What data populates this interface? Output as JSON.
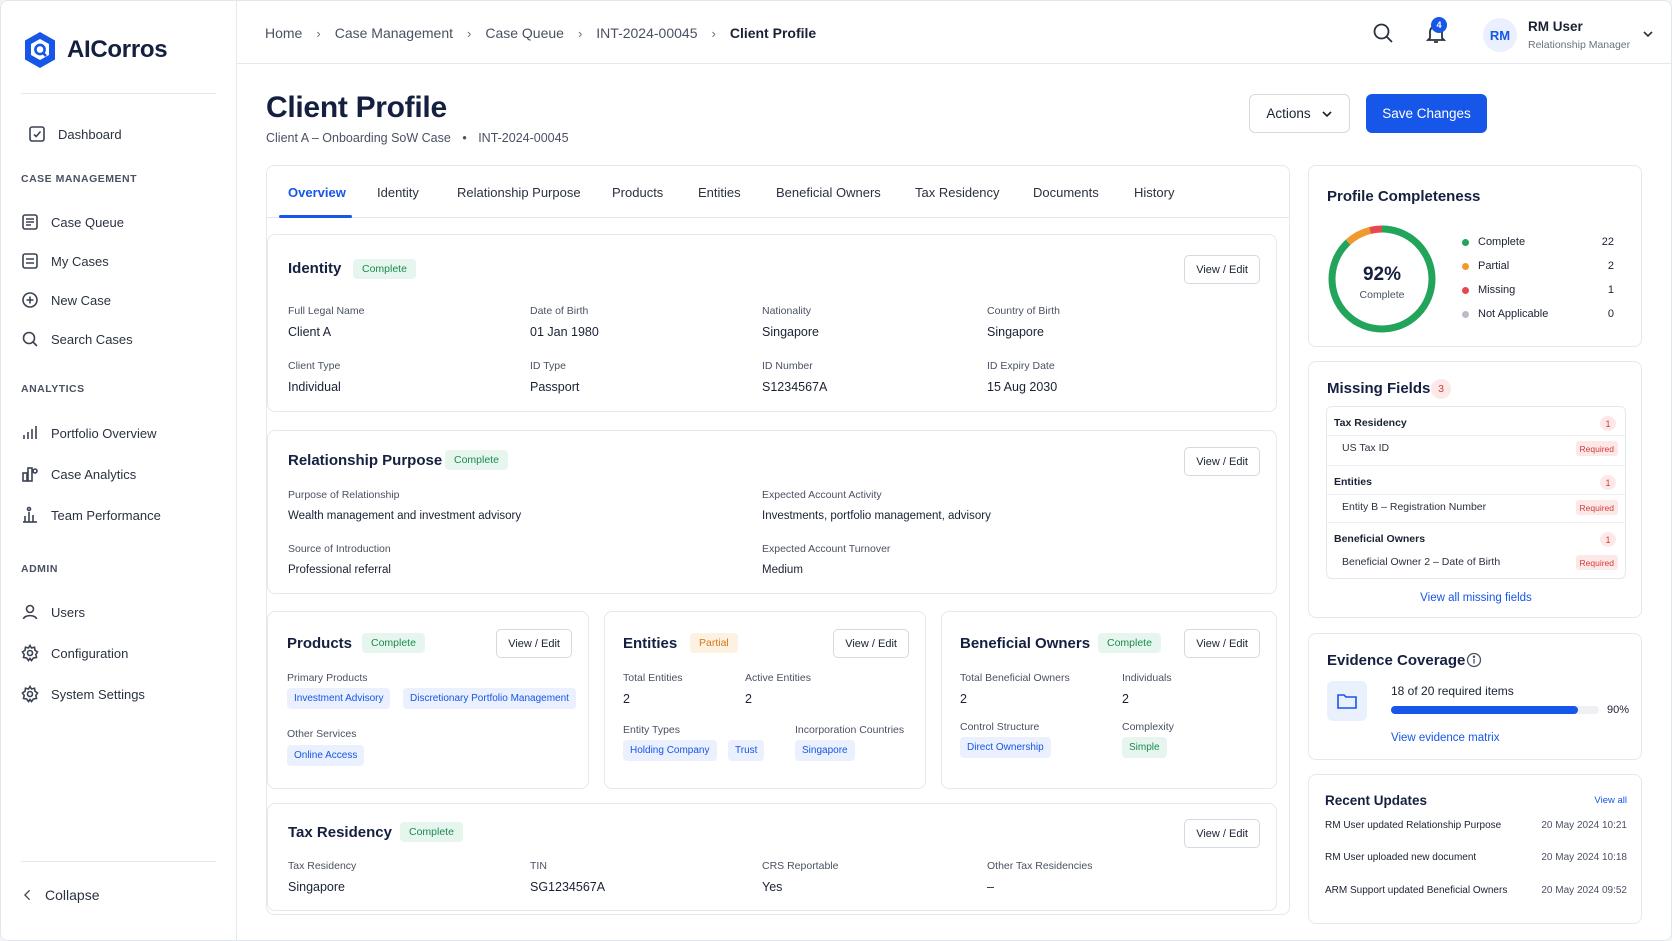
{
  "brand": {
    "name": "AICorros",
    "accent": "#1656e8"
  },
  "sidebar": {
    "dashboard": "Dashboard",
    "section_case": "CASE MANAGEMENT",
    "case_items": [
      "Case Queue",
      "My Cases",
      "New Case",
      "Search Cases"
    ],
    "section_analytics": "ANALYTICS",
    "analytics_items": [
      "Portfolio Overview",
      "Case Analytics",
      "Team Performance"
    ],
    "section_admin": "ADMIN",
    "admin_items": [
      "Users",
      "Configuration",
      "System Settings"
    ],
    "collapse": "Collapse"
  },
  "breadcrumb": [
    "Home",
    "Case Management",
    "Case Queue",
    "INT-2024-00045",
    "Client Profile"
  ],
  "topbar": {
    "notifications": "4",
    "user_initials": "RM",
    "user_name": "RM User",
    "user_role": "Relationship Manager"
  },
  "page": {
    "title": "Client Profile",
    "subtitle": "Client A – Onboarding SoW Case",
    "case_id": "INT-2024-00045",
    "actions_label": "Actions",
    "save_label": "Save Changes"
  },
  "tabs": [
    "Overview",
    "Identity",
    "Relationship Purpose",
    "Products",
    "Entities",
    "Beneficial Owners",
    "Tax Residency",
    "Documents",
    "History"
  ],
  "edit_label": "View / Edit",
  "identity": {
    "title": "Identity",
    "status": "Complete",
    "fields": [
      {
        "label": "Full Legal Name",
        "value": "Client A"
      },
      {
        "label": "Date of Birth",
        "value": "01 Jan 1980"
      },
      {
        "label": "Nationality",
        "value": "Singapore"
      },
      {
        "label": "Country of Birth",
        "value": "Singapore"
      },
      {
        "label": "Client Type",
        "value": "Individual"
      },
      {
        "label": "ID Type",
        "value": "Passport"
      },
      {
        "label": "ID Number",
        "value": "S1234567A"
      },
      {
        "label": "ID Expiry Date",
        "value": "15 Aug 2030"
      }
    ]
  },
  "relationship": {
    "title": "Relationship Purpose",
    "status": "Complete",
    "fields": [
      {
        "label": "Purpose of Relationship",
        "value": "Wealth management and investment advisory"
      },
      {
        "label": "Expected Account Activity",
        "value": "Investments, portfolio management, advisory"
      },
      {
        "label": "Source of Introduction",
        "value": "Professional referral"
      },
      {
        "label": "Expected Account Turnover",
        "value": "Medium"
      }
    ]
  },
  "products": {
    "title": "Products",
    "status": "Complete",
    "primary_label": "Primary Products",
    "primary": [
      "Investment Advisory",
      "Discretionary Portfolio Management"
    ],
    "other_label": "Other Services",
    "other": [
      "Online Access"
    ]
  },
  "entities": {
    "title": "Entities",
    "status": "Partial",
    "total_label": "Total Entities",
    "total": "2",
    "active_label": "Active Entities",
    "active": "2",
    "types_label": "Entity Types",
    "types": [
      "Holding Company",
      "Trust"
    ],
    "countries_label": "Incorporation Countries",
    "countries": [
      "Singapore"
    ]
  },
  "owners": {
    "title": "Beneficial Owners",
    "status": "Complete",
    "total_label": "Total Beneficial Owners",
    "total": "2",
    "individuals_label": "Individuals",
    "individuals": "2",
    "structure_label": "Control Structure",
    "structure": "Direct Ownership",
    "complexity_label": "Complexity",
    "complexity": "Simple"
  },
  "tax": {
    "title": "Tax Residency",
    "status": "Complete",
    "fields": [
      {
        "label": "Tax Residency",
        "value": "Singapore"
      },
      {
        "label": "TIN",
        "value": "SG1234567A"
      },
      {
        "label": "CRS Reportable",
        "value": "Yes"
      },
      {
        "label": "Other Tax Residencies",
        "value": "–"
      }
    ]
  },
  "completeness": {
    "title": "Profile Completeness",
    "percent_label": "92%",
    "percent": 92,
    "caption": "Complete",
    "legend": [
      {
        "label": "Complete",
        "count": "22",
        "color": "#22a55a"
      },
      {
        "label": "Partial",
        "count": "2",
        "color": "#f09a2e"
      },
      {
        "label": "Missing",
        "count": "1",
        "color": "#e5484d"
      },
      {
        "label": "Not Applicable",
        "count": "0",
        "color": "#b8bdc7"
      }
    ]
  },
  "missing": {
    "title": "Missing Fields",
    "count": "3",
    "groups": [
      {
        "name": "Tax Residency",
        "count": "1",
        "item": "US Tax ID",
        "tag": "Required"
      },
      {
        "name": "Entities",
        "count": "1",
        "item": "Entity B – Registration Number",
        "tag": "Required"
      },
      {
        "name": "Beneficial Owners",
        "count": "1",
        "item": "Beneficial Owner 2 – Date of Birth",
        "tag": "Required"
      }
    ],
    "link": "View all missing fields"
  },
  "evidence": {
    "title": "Evidence Coverage",
    "summary": "18 of 20 required items",
    "percent_label": "90%",
    "fraction": 0.9,
    "link": "View evidence matrix"
  },
  "updates": {
    "title": "Recent Updates",
    "view_all": "View all",
    "items": [
      {
        "text": "RM User updated Relationship Purpose",
        "time": "20 May 2024 10:21"
      },
      {
        "text": "RM User uploaded new document",
        "time": "20 May 2024 10:18"
      },
      {
        "text": "ARM Support updated Beneficial Owners",
        "time": "20 May 2024 09:52"
      }
    ]
  }
}
